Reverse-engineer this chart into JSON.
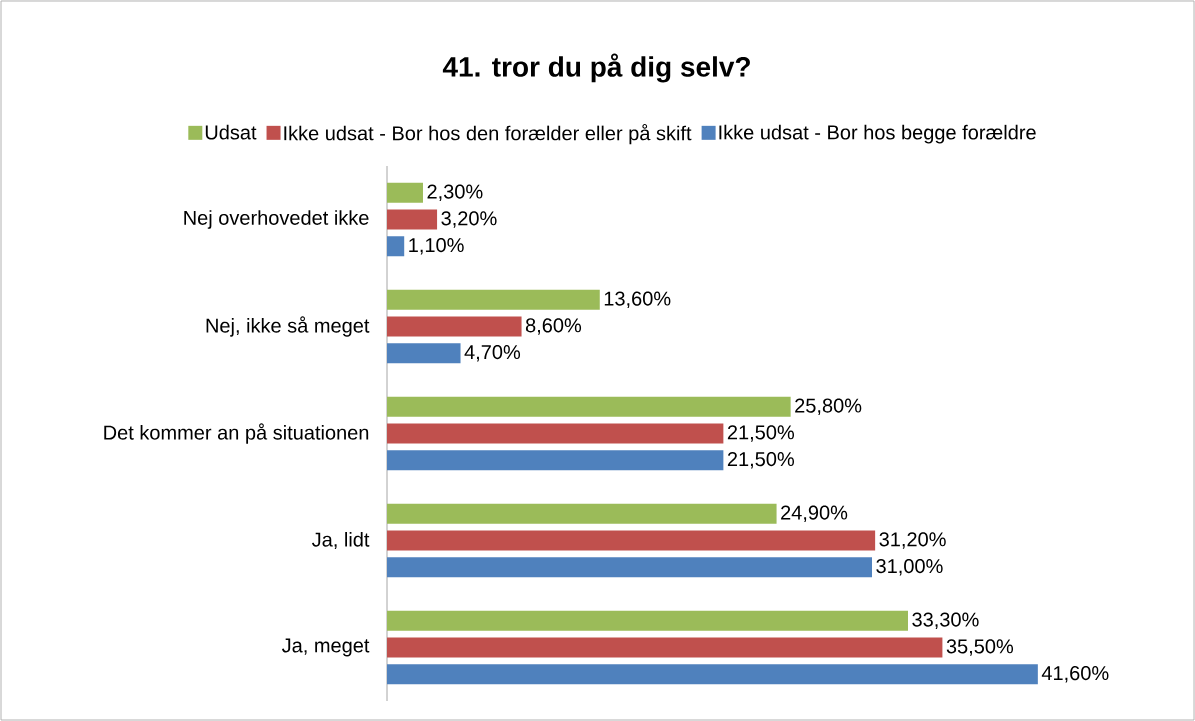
{
  "chart_data": {
    "type": "bar",
    "orientation": "horizontal",
    "title": "41. tror du på dig selv?",
    "categories": [
      "Nej overhovedet ikke",
      "Nej, ikke så meget",
      "Det kommer an på situationen",
      "Ja, lidt",
      "Ja, meget"
    ],
    "series": [
      {
        "name": "Udsat",
        "color": "#9bbb59",
        "values": [
          2.3,
          13.6,
          25.8,
          24.9,
          33.3
        ],
        "value_labels": [
          "2,30%",
          "13,60%",
          "25,80%",
          "24,90%",
          "33,30%"
        ]
      },
      {
        "name": "Ikke udsat - Bor hos den forælder eller på skift",
        "color": "#c0504d",
        "values": [
          3.2,
          8.6,
          21.5,
          31.2,
          35.5
        ],
        "value_labels": [
          "3,20%",
          "8,60%",
          "21,50%",
          "31,20%",
          "35,50%"
        ]
      },
      {
        "name": "Ikke udsat - Bor hos begge forældre",
        "color": "#4f81bd",
        "values": [
          1.1,
          4.7,
          21.5,
          31.0,
          41.6
        ],
        "value_labels": [
          "1,10%",
          "4,70%",
          "21,50%",
          "31,00%",
          "41,60%"
        ]
      }
    ],
    "tick_labels": "y",
    "legend": "top",
    "grid": false
  }
}
